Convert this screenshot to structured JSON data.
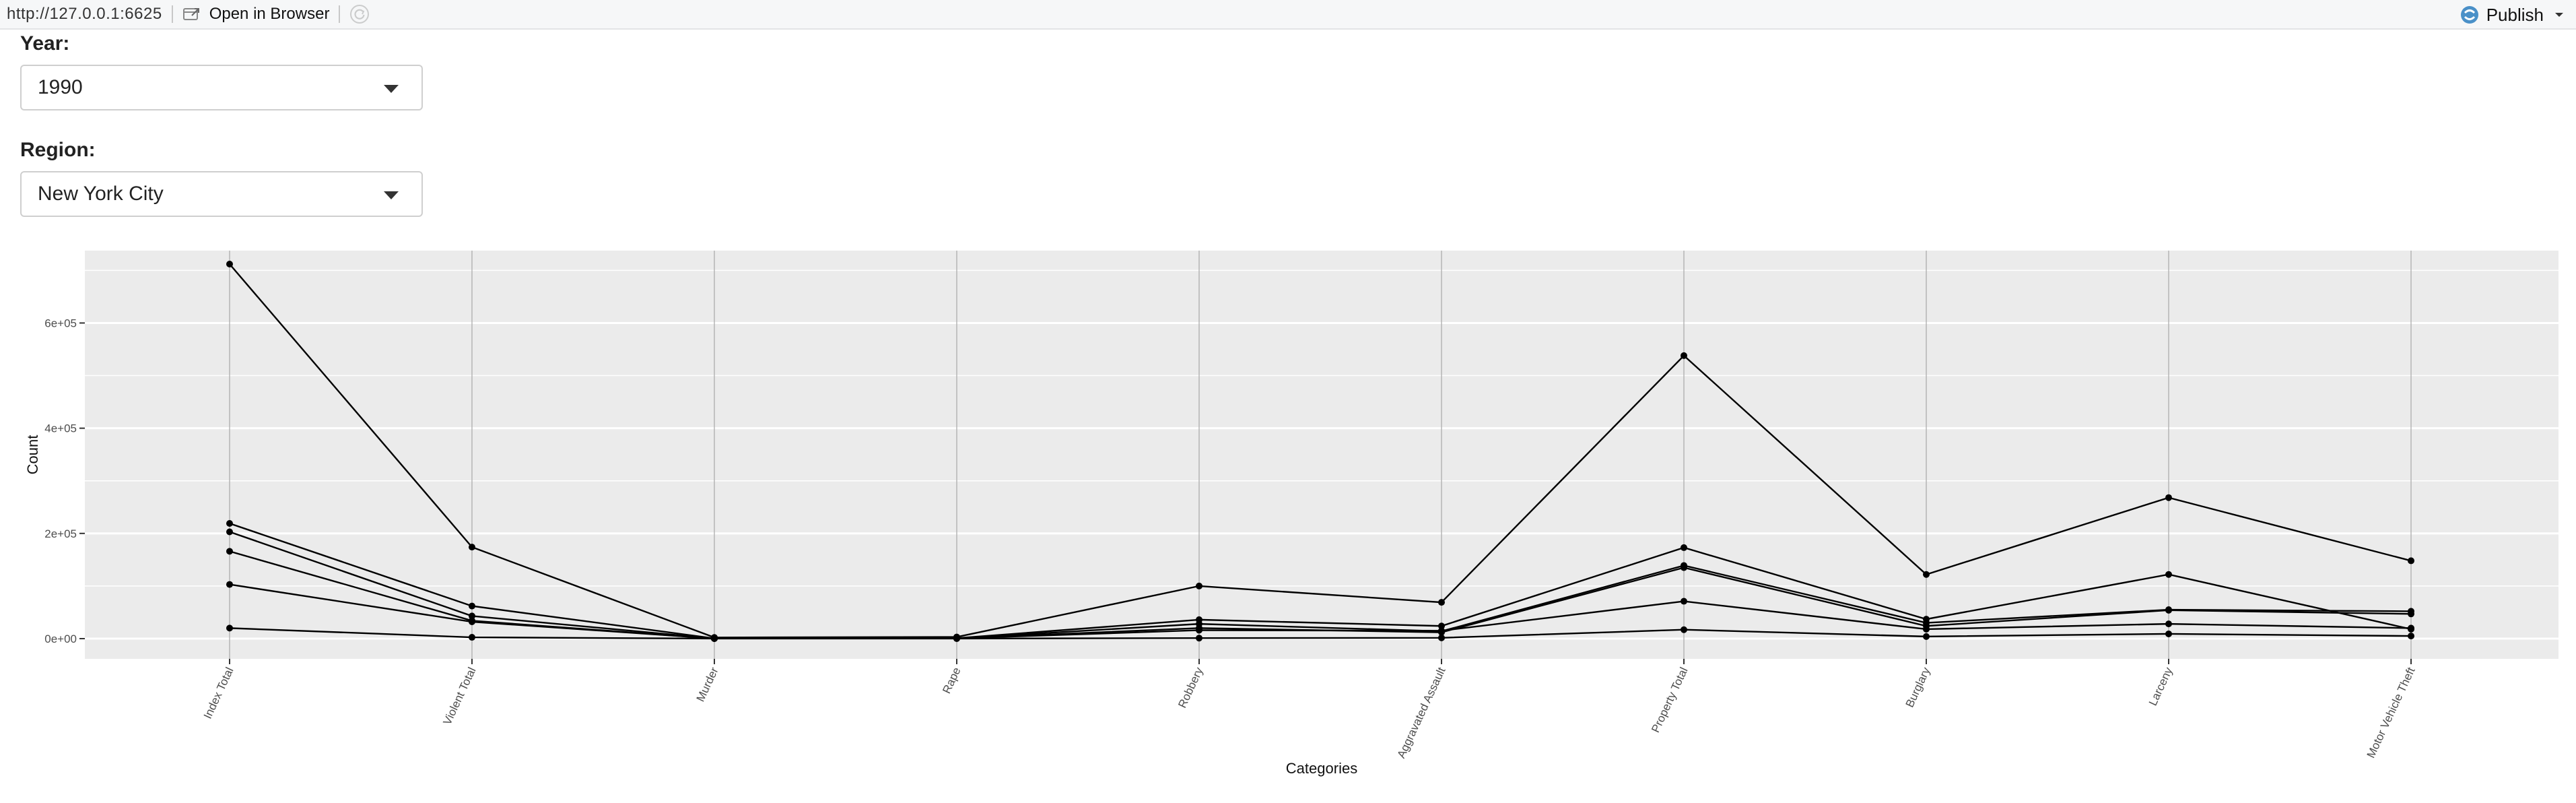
{
  "toolbar": {
    "url": "http://127.0.0.1:6625",
    "open_in_browser": "Open in Browser",
    "publish": "Publish"
  },
  "controls": {
    "year_label": "Year:",
    "year_value": "1990",
    "region_label": "Region:",
    "region_value": "New York City"
  },
  "chart_data": {
    "type": "line",
    "xlabel": "Categories",
    "ylabel": "Count",
    "ylim": [
      -20000,
      760000
    ],
    "y_ticks": [
      0,
      200000,
      400000,
      600000
    ],
    "y_tick_labels": [
      "0e+00",
      "2e+05",
      "4e+05",
      "6e+05"
    ],
    "categories": [
      "Index Total",
      "Violent Total",
      "Murder",
      "Rape",
      "Robbery",
      "Aggravated Assault",
      "Property Total",
      "Burglary",
      "Larceny",
      "Motor Vehicle Theft"
    ],
    "grid": true,
    "series": [
      {
        "values": [
          712000,
          174000,
          2200,
          3100,
          100000,
          69000,
          538000,
          122000,
          268000,
          148000
        ]
      },
      {
        "values": [
          219000,
          62000,
          400,
          800,
          36000,
          24000,
          173000,
          37000,
          122000,
          18000
        ]
      },
      {
        "values": [
          203000,
          43000,
          300,
          600,
          28000,
          14000,
          139000,
          30000,
          55000,
          52000
        ]
      },
      {
        "values": [
          166000,
          34000,
          200,
          500,
          20000,
          12000,
          135000,
          24000,
          54000,
          47000
        ]
      },
      {
        "values": [
          103000,
          32000,
          200,
          400,
          16000,
          15000,
          71000,
          18000,
          28000,
          20000
        ]
      },
      {
        "values": [
          20000,
          2500,
          50,
          100,
          1000,
          1500,
          17000,
          4000,
          9000,
          5000
        ]
      }
    ]
  }
}
